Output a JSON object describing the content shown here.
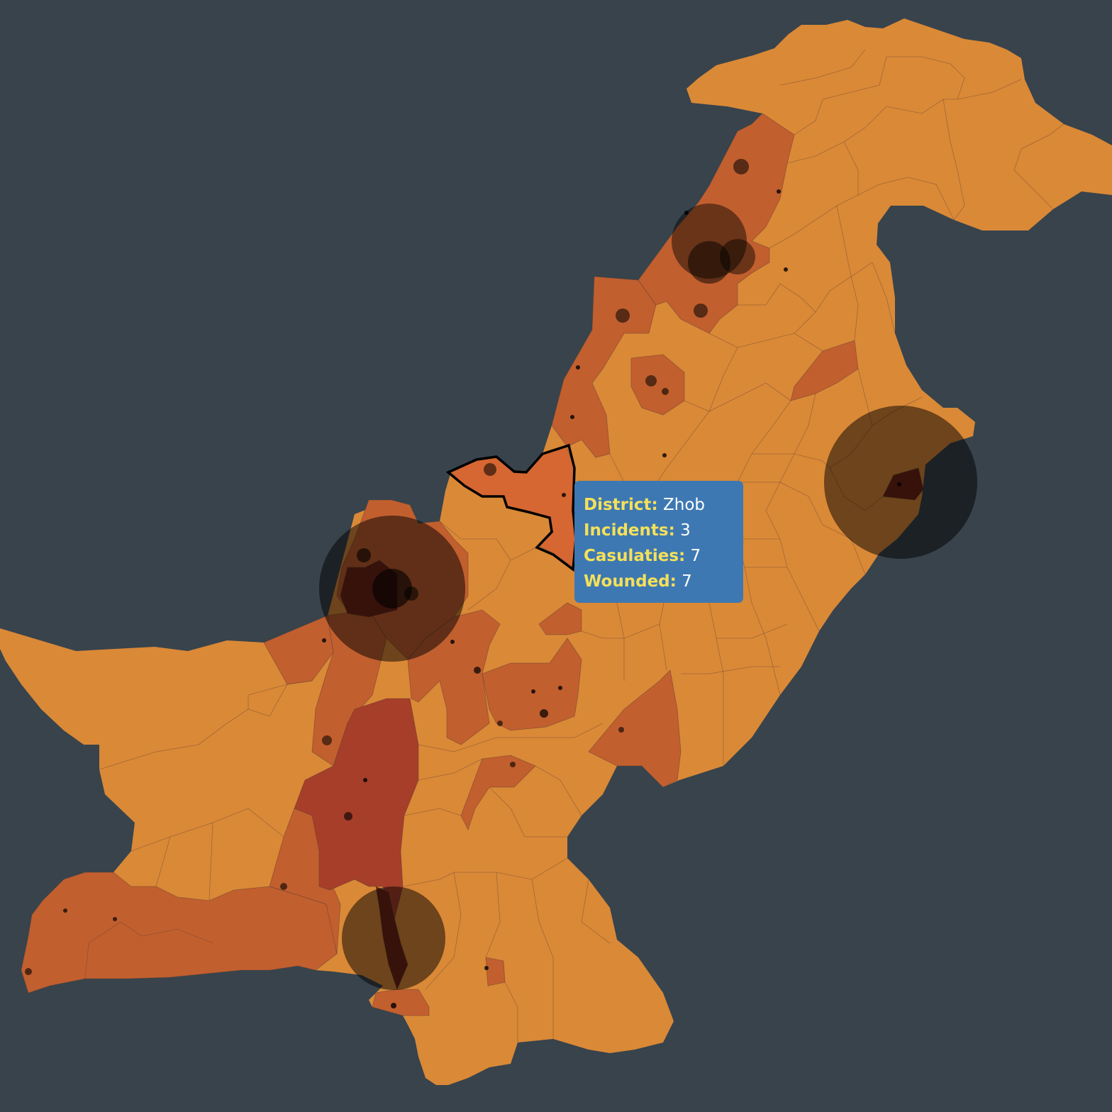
{
  "colors": {
    "background": "#38434c",
    "fill_level_0": "#da8937",
    "fill_level_1": "#c25f2f",
    "fill_level_2": "#a63e2a",
    "fill_level_3": "#6f2416",
    "highlight_fill": "#d66732",
    "highlight_stroke": "#000000",
    "tooltip_bg": "#3d78b2",
    "tooltip_key": "#f4e05a",
    "tooltip_value": "#ffffff"
  },
  "tooltip": {
    "district_label": "District:",
    "district_value": "Zhob",
    "incidents_label": "Incidents:",
    "incidents_value": "3",
    "casualties_label": "Casulaties:",
    "casualties_value": "7",
    "wounded_label": "Wounded:",
    "wounded_value": "7"
  }
}
